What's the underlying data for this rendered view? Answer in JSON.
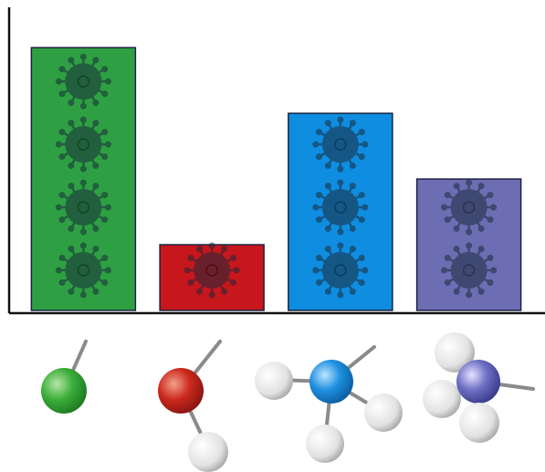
{
  "chart_data": {
    "type": "bar",
    "categories": [
      null,
      null,
      null,
      null
    ],
    "values": [
      4,
      1,
      3,
      2
    ],
    "colors": [
      "#2ea043",
      "#c8161d",
      "#0f8de0",
      "#6d6db3"
    ],
    "ylim": [
      0,
      4.6
    ]
  }
}
